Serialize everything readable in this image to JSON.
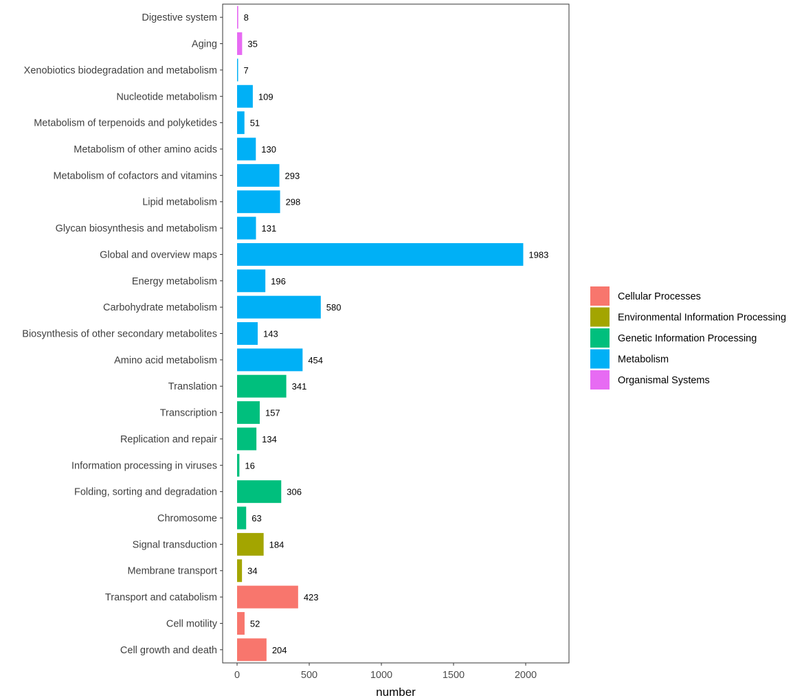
{
  "chart_data": {
    "type": "bar",
    "orientation": "horizontal",
    "title": "",
    "xlabel": "number",
    "ylabel": "",
    "xlim": [
      -100,
      2300
    ],
    "xticks": [
      0,
      500,
      1000,
      1500,
      2000
    ],
    "xtick_labels": [
      "0",
      "500",
      "1000",
      "1500",
      "2000"
    ],
    "grid": false,
    "legend_position": "right",
    "legend": [
      {
        "name": "Cellular Processes",
        "color": "#F8766D"
      },
      {
        "name": "Environmental Information Processing",
        "color": "#A3A500"
      },
      {
        "name": "Genetic Information Processing",
        "color": "#00BF7D"
      },
      {
        "name": "Metabolism",
        "color": "#00B0F6"
      },
      {
        "name": "Organismal Systems",
        "color": "#E76BF3"
      }
    ],
    "categories": [
      "Digestive system",
      "Aging",
      "Xenobiotics biodegradation and metabolism",
      "Nucleotide metabolism",
      "Metabolism of terpenoids and polyketides",
      "Metabolism of other amino acids",
      "Metabolism of cofactors and vitamins",
      "Lipid metabolism",
      "Glycan biosynthesis and metabolism",
      "Global and overview maps",
      "Energy metabolism",
      "Carbohydrate metabolism",
      "Biosynthesis of other secondary metabolites",
      "Amino acid metabolism",
      "Translation",
      "Transcription",
      "Replication and repair",
      "Information processing in viruses",
      "Folding, sorting and degradation",
      "Chromosome",
      "Signal transduction",
      "Membrane transport",
      "Transport and catabolism",
      "Cell motility",
      "Cell growth and death"
    ],
    "values": [
      8,
      35,
      7,
      109,
      51,
      130,
      293,
      298,
      131,
      1983,
      196,
      580,
      143,
      454,
      341,
      157,
      134,
      16,
      306,
      63,
      184,
      34,
      423,
      52,
      204
    ],
    "groups": [
      "Organismal Systems",
      "Organismal Systems",
      "Metabolism",
      "Metabolism",
      "Metabolism",
      "Metabolism",
      "Metabolism",
      "Metabolism",
      "Metabolism",
      "Metabolism",
      "Metabolism",
      "Metabolism",
      "Metabolism",
      "Metabolism",
      "Genetic Information Processing",
      "Genetic Information Processing",
      "Genetic Information Processing",
      "Genetic Information Processing",
      "Genetic Information Processing",
      "Genetic Information Processing",
      "Environmental Information Processing",
      "Environmental Information Processing",
      "Cellular Processes",
      "Cellular Processes",
      "Cellular Processes"
    ]
  }
}
